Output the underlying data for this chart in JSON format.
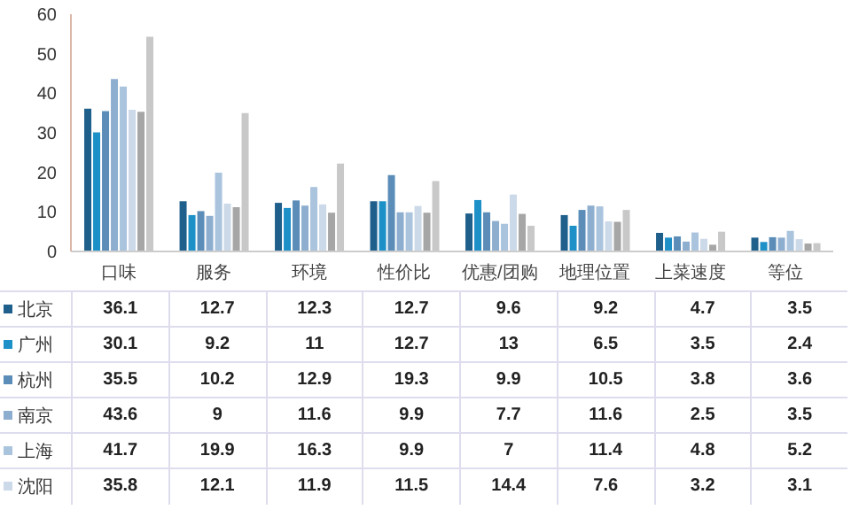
{
  "chart_data": {
    "type": "bar",
    "categories": [
      "口味",
      "服务",
      "环境",
      "性价比",
      "优惠/团购",
      "地理位置",
      "上菜速度",
      "等位"
    ],
    "ylim": [
      0,
      60
    ],
    "yticks": [
      0,
      10,
      20,
      30,
      40,
      50,
      60
    ],
    "grid": false,
    "legend": "bottom left",
    "series": [
      {
        "name": "北京",
        "color": "#1f5f8b",
        "values": [
          36.1,
          12.7,
          12.3,
          12.7,
          9.6,
          9.2,
          4.7,
          3.5
        ],
        "value_labels": [
          "36.1",
          "12.7",
          "12.3",
          "12.7",
          "9.6",
          "9.2",
          "4.7",
          "3.5"
        ]
      },
      {
        "name": "广州",
        "color": "#1e90c8",
        "values": [
          30.1,
          9.2,
          11,
          12.7,
          13,
          6.5,
          3.5,
          2.4
        ],
        "value_labels": [
          "30.1",
          "9.2",
          "11",
          "12.7",
          "13",
          "6.5",
          "3.5",
          "2.4"
        ]
      },
      {
        "name": "杭州",
        "color": "#5b8db8",
        "values": [
          35.5,
          10.2,
          12.9,
          19.3,
          9.9,
          10.5,
          3.8,
          3.6
        ],
        "value_labels": [
          "35.5",
          "10.2",
          "12.9",
          "19.3",
          "9.9",
          "10.5",
          "3.8",
          "3.6"
        ]
      },
      {
        "name": "南京",
        "color": "#8eaed0",
        "values": [
          43.6,
          9,
          11.6,
          9.9,
          7.7,
          11.6,
          2.5,
          3.5
        ],
        "value_labels": [
          "43.6",
          "9",
          "11.6",
          "9.9",
          "7.7",
          "11.6",
          "2.5",
          "3.5"
        ]
      },
      {
        "name": "上海",
        "color": "#aac4de",
        "values": [
          41.7,
          19.9,
          16.3,
          9.9,
          7,
          11.4,
          4.8,
          5.2
        ],
        "value_labels": [
          "41.7",
          "19.9",
          "16.3",
          "9.9",
          "7",
          "11.4",
          "4.8",
          "5.2"
        ]
      },
      {
        "name": "沈阳",
        "color": "#ccd9e8",
        "values": [
          35.8,
          12.1,
          11.9,
          11.5,
          14.4,
          7.6,
          3.2,
          3.1
        ],
        "value_labels": [
          "35.8",
          "12.1",
          "11.9",
          "11.5",
          "14.4",
          "7.6",
          "3.2",
          "3.1"
        ]
      },
      {
        "color": "#a6a6a6",
        "values": [
          35.3,
          11.2,
          9.8,
          9.8,
          9.5,
          7.5,
          1.7,
          2.0
        ]
      },
      {
        "color": "#c8c8c8",
        "values": [
          54.3,
          35,
          22.2,
          17.8,
          6.5,
          10.5,
          5,
          2.1
        ]
      }
    ]
  }
}
